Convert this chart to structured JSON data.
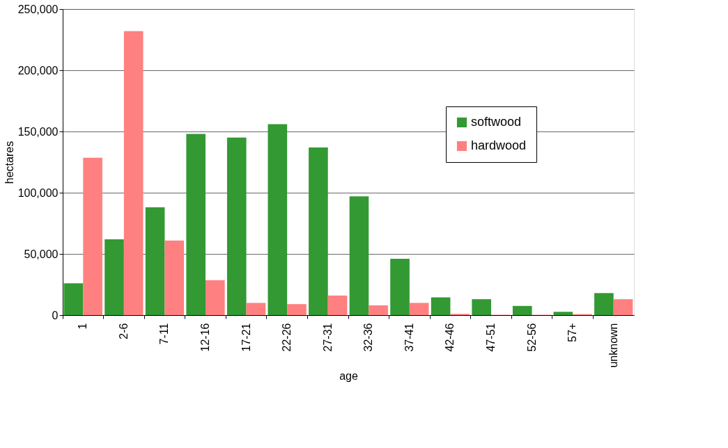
{
  "chart_data": {
    "type": "bar",
    "xlabel": "age",
    "ylabel": "hectares",
    "categories": [
      "1",
      "2-6",
      "7-11",
      "12-16",
      "17-21",
      "22-26",
      "27-31",
      "32-36",
      "37-41",
      "42-46",
      "47-51",
      "52-56",
      "57+",
      "unknown"
    ],
    "series": [
      {
        "name": "softwood",
        "color": "#339933",
        "values": [
          26000,
          62000,
          88000,
          148000,
          145000,
          156000,
          137000,
          97000,
          46000,
          14500,
          13000,
          7500,
          2700,
          18000
        ]
      },
      {
        "name": "hardwood",
        "color": "#ff8080",
        "values": [
          128500,
          232000,
          61000,
          28500,
          10000,
          9000,
          16000,
          8000,
          10000,
          1000,
          300,
          300,
          800,
          13000
        ]
      }
    ],
    "ylim": [
      0,
      250000
    ],
    "yticks": [
      0,
      {
        "value": 50000,
        "label": "50,000"
      },
      {
        "value": 100000,
        "label": "100,000"
      },
      {
        "value": 150000,
        "label": "150,000"
      },
      {
        "value": 200000,
        "label": "200,000"
      },
      {
        "value": 250000,
        "label": "250,000"
      }
    ],
    "grid": "y",
    "legend": "top right"
  }
}
